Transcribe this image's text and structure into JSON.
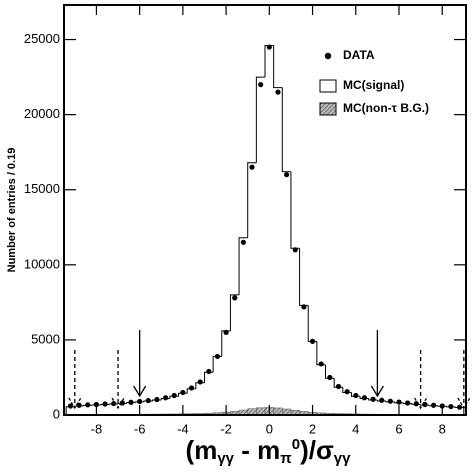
{
  "chart_data": {
    "type": "histogram",
    "ylabel": "Number of entries / 0.19",
    "xlabel": [
      "(m",
      "γγ",
      " - m",
      "π",
      "0",
      ")/σ",
      "γγ"
    ],
    "bins": [
      -9.4,
      -9,
      -8.6,
      -8.2,
      -7.8,
      -7.4,
      -7,
      -6.6,
      -6.2,
      -5.8,
      -5.4,
      -5,
      -4.6,
      -4.2,
      -3.8,
      -3.4,
      -3,
      -2.6,
      -2.2,
      -1.8,
      -1.4,
      -1,
      -0.6,
      -0.2,
      0.2,
      0.6,
      1,
      1.4,
      1.8,
      2.2,
      2.6,
      3,
      3.4,
      3.8,
      4.2,
      4.6,
      5,
      5.4,
      5.8,
      6.2,
      6.6,
      7,
      7.4,
      7.8,
      8.2,
      8.6,
      9
    ],
    "series": [
      {
        "name": "DATA",
        "color": "#000000",
        "values": [
          600,
          650,
          680,
          700,
          730,
          760,
          800,
          850,
          900,
          960,
          1030,
          1150,
          1300,
          1500,
          1800,
          2200,
          2900,
          3900,
          5500,
          7800,
          11500,
          16500,
          22000,
          24500,
          21500,
          16000,
          11000,
          7200,
          4900,
          3400,
          2500,
          1900,
          1550,
          1300,
          1150,
          1050,
          980,
          920,
          860,
          800,
          750,
          700,
          650,
          600,
          560,
          520
        ]
      },
      {
        "name": "MC(signal)",
        "color": "#000000",
        "values": [
          550,
          600,
          640,
          670,
          700,
          730,
          770,
          820,
          870,
          930,
          1000,
          1100,
          1250,
          1450,
          1750,
          2150,
          2850,
          3900,
          5600,
          8000,
          11800,
          16800,
          22500,
          24600,
          21800,
          16200,
          11100,
          7300,
          4900,
          3350,
          2450,
          1850,
          1500,
          1250,
          1100,
          1000,
          930,
          870,
          810,
          760,
          710,
          660,
          620,
          580,
          540,
          500
        ]
      },
      {
        "name": "MC(non-τ B.G.)",
        "color": "#808080",
        "values": [
          30,
          30,
          35,
          35,
          40,
          40,
          45,
          45,
          50,
          55,
          60,
          65,
          70,
          80,
          90,
          100,
          120,
          150,
          190,
          250,
          330,
          420,
          480,
          500,
          470,
          400,
          320,
          240,
          180,
          140,
          110,
          90,
          80,
          70,
          60,
          55,
          50,
          45,
          40,
          35,
          35,
          30,
          30,
          25,
          25,
          20
        ]
      }
    ],
    "xlim": [
      -9.5,
      9.1
    ],
    "ylim": [
      0,
      27300
    ],
    "xticks": [
      -8,
      -6,
      -4,
      -2,
      0,
      2,
      4,
      6,
      8
    ],
    "yticks": [
      0,
      5000,
      10000,
      15000,
      20000,
      25000
    ],
    "cut_arrows": {
      "solid": [
        -6,
        5
      ],
      "dashed": [
        -9,
        -7,
        7,
        9
      ]
    }
  }
}
